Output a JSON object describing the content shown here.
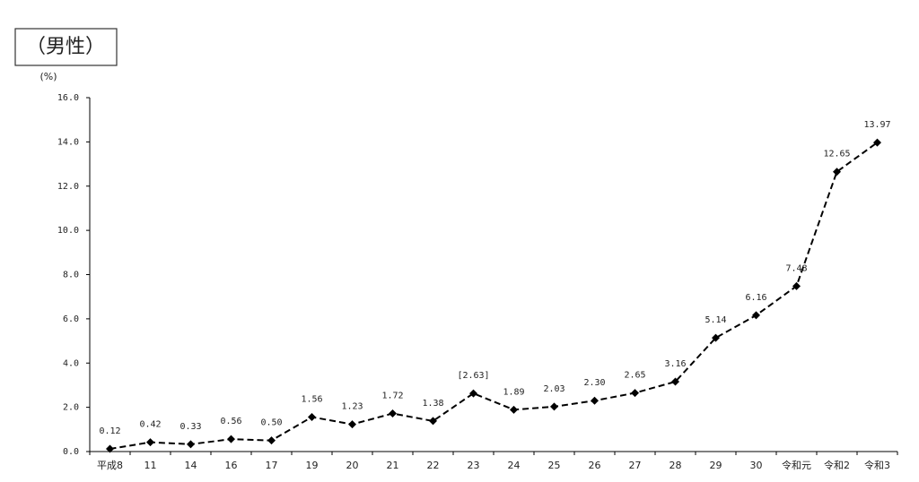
{
  "chart_data": {
    "type": "line",
    "title": "（男性）",
    "y_label": "(%)",
    "categories": [
      "平成8",
      "11",
      "14",
      "16",
      "17",
      "19",
      "20",
      "21",
      "22",
      "23",
      "24",
      "25",
      "26",
      "27",
      "28",
      "29",
      "30",
      "令和元",
      "令和2",
      "令和3"
    ],
    "values": [
      0.12,
      0.42,
      0.33,
      0.56,
      0.5,
      1.56,
      1.23,
      1.72,
      1.38,
      2.63,
      1.89,
      2.03,
      2.3,
      2.65,
      3.16,
      5.14,
      6.16,
      7.48,
      12.65,
      13.97
    ],
    "value_labels": [
      "0.12",
      "0.42",
      "0.33",
      "0.56",
      "0.50",
      "1.56",
      "1.23",
      "1.72",
      "1.38",
      "[2.63]",
      "1.89",
      "2.03",
      "2.30",
      "2.65",
      "3.16",
      "5.14",
      "6.16",
      "7.48",
      "12.65",
      "13.97"
    ],
    "color": "#000000",
    "ylim": [
      0,
      16
    ],
    "yticks": [
      {
        "value": 0,
        "label": "0.0"
      },
      {
        "value": 2,
        "label": "2.0"
      },
      {
        "value": 4,
        "label": "4.0"
      },
      {
        "value": 6,
        "label": "6.0"
      },
      {
        "value": 8,
        "label": "8.0"
      },
      {
        "value": 10,
        "label": "10.0"
      },
      {
        "value": 12,
        "label": "12.0"
      },
      {
        "value": 14,
        "label": "14.0"
      },
      {
        "value": 16,
        "label": "16.0"
      }
    ],
    "grid": false
  }
}
